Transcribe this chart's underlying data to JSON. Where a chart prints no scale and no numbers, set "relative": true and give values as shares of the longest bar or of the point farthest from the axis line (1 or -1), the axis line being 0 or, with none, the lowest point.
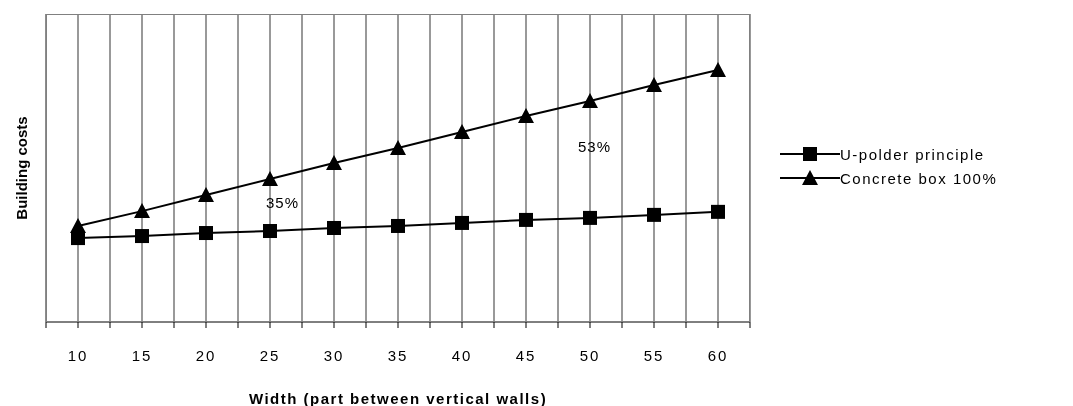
{
  "chart_data": {
    "type": "line",
    "relative": true,
    "xlabel": "Width (part between vertical walls)",
    "ylabel": "Building costs",
    "x": [
      10,
      15,
      20,
      25,
      30,
      35,
      40,
      45,
      50,
      55,
      60
    ],
    "xlim": [
      7.5,
      62.5
    ],
    "xticks": [
      {
        "value": 7.5,
        "label": null
      },
      10,
      {
        "value": 12.5,
        "label": null
      },
      15,
      {
        "value": 17.5,
        "label": null
      },
      20,
      {
        "value": 22.5,
        "label": null
      },
      25,
      {
        "value": 27.5,
        "label": null
      },
      30,
      {
        "value": 32.5,
        "label": null
      },
      35,
      {
        "value": 37.5,
        "label": null
      },
      40,
      {
        "value": 42.5,
        "label": null
      },
      45,
      {
        "value": 47.5,
        "label": null
      },
      50,
      {
        "value": 52.5,
        "label": null
      },
      55,
      {
        "value": 57.5,
        "label": null
      },
      60,
      {
        "value": 62.5,
        "label": null
      }
    ],
    "series": [
      {
        "name": "U-polder principle",
        "color": "#000000",
        "marker": "square",
        "values": [
          0.333,
          0.341,
          0.353,
          0.361,
          0.373,
          0.381,
          0.393,
          0.405,
          0.413,
          0.425,
          0.437
        ]
      },
      {
        "name": "Concrete box 100%",
        "color": "#000000",
        "marker": "triangle",
        "values": [
          0.381,
          0.44,
          0.504,
          0.567,
          0.631,
          0.69,
          0.754,
          0.817,
          0.877,
          0.94,
          1
        ]
      }
    ],
    "annotations": [
      "35%",
      "53%"
    ],
    "grid": "x",
    "legend": "right"
  }
}
